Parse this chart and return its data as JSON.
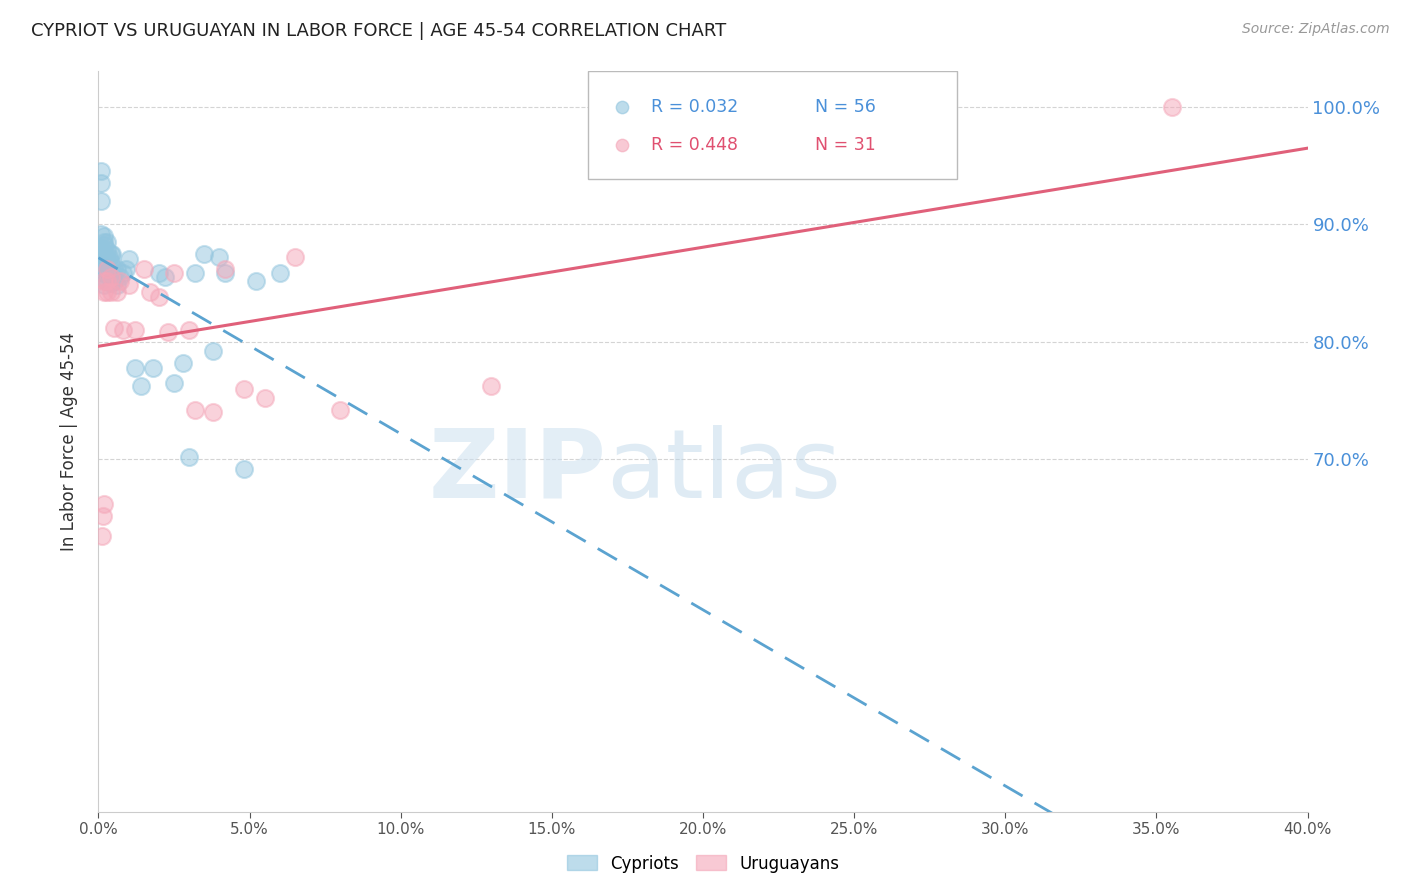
{
  "title": "CYPRIOT VS URUGUAYAN IN LABOR FORCE | AGE 45-54 CORRELATION CHART",
  "source_text": "Source: ZipAtlas.com",
  "ylabel": "In Labor Force | Age 45-54",
  "legend_r_cyp": "R = 0.032",
  "legend_n_cyp": "N = 56",
  "legend_r_uru": "R = 0.448",
  "legend_n_uru": "N = 31",
  "cypriot_color": "#92c5de",
  "uruguayan_color": "#f4a6b8",
  "cypriot_line_color": "#5ba3d0",
  "uruguayan_line_color": "#e0607a",
  "background_color": "#ffffff",
  "watermark_zip": "ZIP",
  "watermark_atlas": "atlas",
  "xlim": [
    0.0,
    0.4
  ],
  "ylim": [
    0.4,
    1.03
  ],
  "yticks": [
    0.7,
    0.8,
    0.9,
    1.0
  ],
  "xticks": [
    0.0,
    0.05,
    0.1,
    0.15,
    0.2,
    0.25,
    0.3,
    0.35,
    0.4
  ],
  "cypriot_x": [
    0.0008,
    0.0008,
    0.0009,
    0.001,
    0.001,
    0.001,
    0.001,
    0.0015,
    0.0015,
    0.0015,
    0.0018,
    0.002,
    0.002,
    0.002,
    0.002,
    0.002,
    0.002,
    0.0022,
    0.0025,
    0.0025,
    0.003,
    0.003,
    0.003,
    0.003,
    0.003,
    0.0032,
    0.0035,
    0.004,
    0.004,
    0.004,
    0.0042,
    0.0045,
    0.005,
    0.005,
    0.006,
    0.006,
    0.007,
    0.008,
    0.009,
    0.01,
    0.012,
    0.014,
    0.018,
    0.02,
    0.022,
    0.025,
    0.028,
    0.03,
    0.032,
    0.035,
    0.038,
    0.04,
    0.042,
    0.048,
    0.052,
    0.06
  ],
  "cypriot_y": [
    0.92,
    0.935,
    0.945,
    0.862,
    0.872,
    0.88,
    0.892,
    0.858,
    0.868,
    0.875,
    0.885,
    0.848,
    0.858,
    0.868,
    0.875,
    0.882,
    0.89,
    0.87,
    0.858,
    0.872,
    0.852,
    0.862,
    0.87,
    0.878,
    0.885,
    0.862,
    0.872,
    0.85,
    0.862,
    0.875,
    0.868,
    0.875,
    0.852,
    0.862,
    0.848,
    0.862,
    0.855,
    0.858,
    0.862,
    0.87,
    0.778,
    0.762,
    0.778,
    0.858,
    0.855,
    0.765,
    0.782,
    0.702,
    0.858,
    0.875,
    0.792,
    0.872,
    0.858,
    0.692,
    0.852,
    0.858
  ],
  "uruguayan_x": [
    0.0012,
    0.0015,
    0.0018,
    0.002,
    0.002,
    0.003,
    0.003,
    0.003,
    0.004,
    0.004,
    0.005,
    0.006,
    0.007,
    0.008,
    0.01,
    0.012,
    0.015,
    0.017,
    0.02,
    0.023,
    0.025,
    0.03,
    0.032,
    0.038,
    0.042,
    0.048,
    0.055,
    0.065,
    0.08,
    0.13,
    0.355
  ],
  "uruguayan_y": [
    0.635,
    0.652,
    0.662,
    0.842,
    0.852,
    0.842,
    0.852,
    0.862,
    0.842,
    0.855,
    0.812,
    0.842,
    0.852,
    0.81,
    0.848,
    0.81,
    0.862,
    0.842,
    0.838,
    0.808,
    0.858,
    0.81,
    0.742,
    0.74,
    0.862,
    0.76,
    0.752,
    0.872,
    0.742,
    0.762,
    1.0
  ]
}
